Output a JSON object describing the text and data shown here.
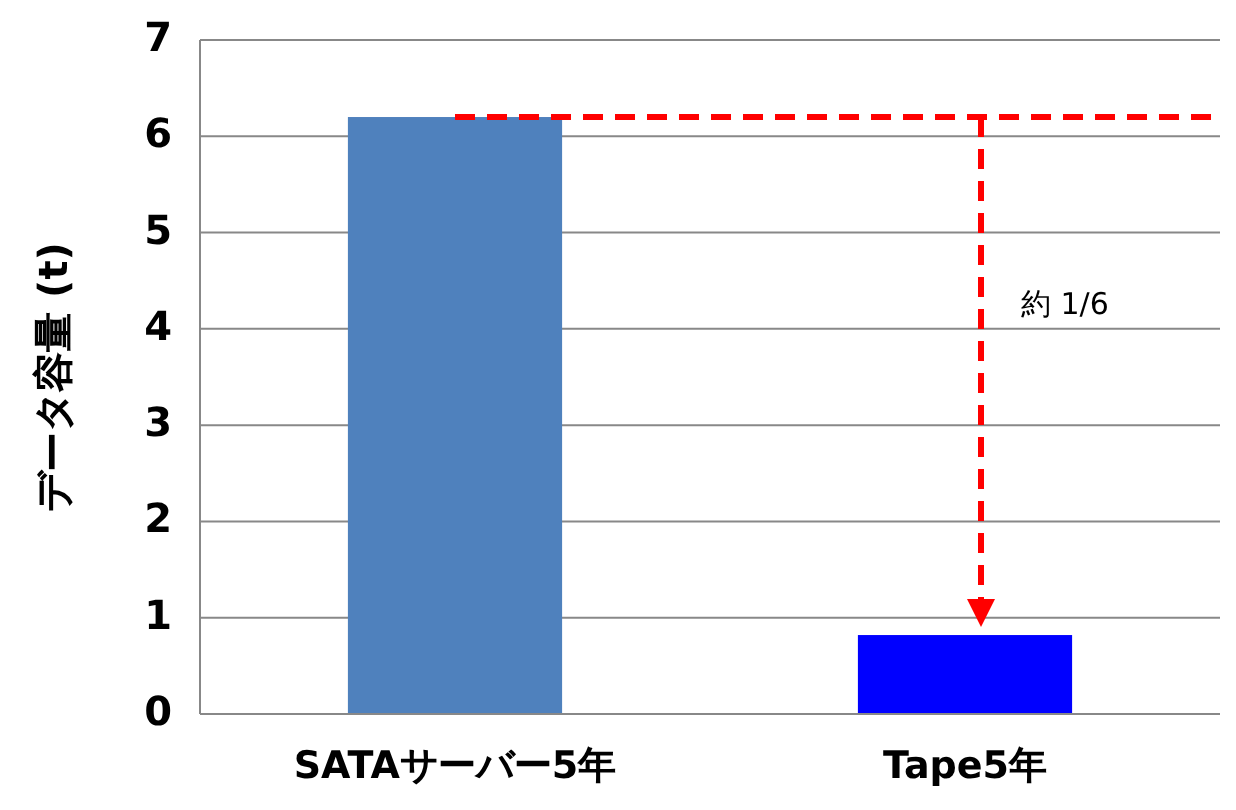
{
  "chart_data": {
    "type": "bar",
    "ylabel": "データ容量 (t)",
    "categories": [
      "SATAサーバー5年",
      "Tape5年"
    ],
    "values": [
      6.2,
      0.82
    ],
    "colors": [
      "#4f81bd",
      "#0000ff"
    ],
    "ylim": [
      0,
      7
    ],
    "yticks": [
      0,
      1,
      2,
      3,
      4,
      5,
      6,
      7
    ],
    "grid": "y",
    "ref_lines": [
      {
        "axis": "y",
        "value": 6.2,
        "color": "#ff0000",
        "line_style": "dashed"
      }
    ],
    "annotations": [
      "約 1/6"
    ]
  }
}
